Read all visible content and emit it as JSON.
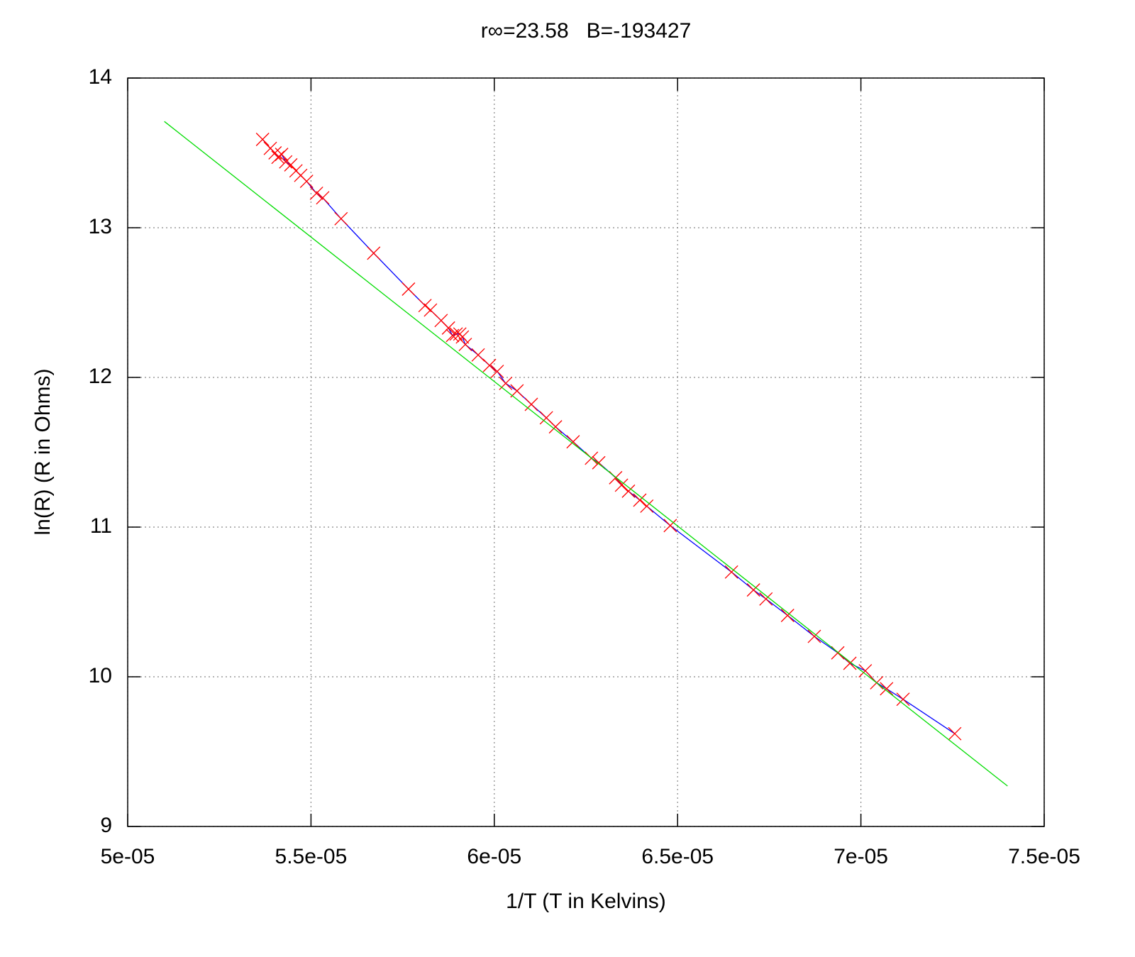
{
  "chart_data": {
    "type": "scatter-line",
    "title": "r∞=23.58   B=-193427",
    "xlabel": "1/T (T in Kelvins)",
    "ylabel": "ln(R) (R in Ohms)",
    "xlim": [
      5e-05,
      7.5e-05
    ],
    "ylim": [
      9,
      14
    ],
    "xticks": [
      {
        "value": 5e-05,
        "label": "5e-05"
      },
      {
        "value": 5.5e-05,
        "label": "5.5e-05"
      },
      {
        "value": 6e-05,
        "label": "6e-05"
      },
      {
        "value": 6.5e-05,
        "label": "6.5e-05"
      },
      {
        "value": 7e-05,
        "label": "7e-05"
      },
      {
        "value": 7.5e-05,
        "label": "7.5e-05"
      }
    ],
    "yticks": [
      9,
      10,
      11,
      12,
      13,
      14
    ],
    "grid": true,
    "series": [
      {
        "color": "#ff0000",
        "line_color": "#0000ff",
        "marker": "x",
        "x": [
          5.368e-05,
          5.389e-05,
          5.402e-05,
          5.41e-05,
          5.42e-05,
          5.431e-05,
          5.445e-05,
          5.459e-05,
          5.472e-05,
          5.488e-05,
          5.515e-05,
          5.532e-05,
          5.582e-05,
          5.671e-05,
          5.766e-05,
          5.811e-05,
          5.826e-05,
          5.855e-05,
          5.875e-05,
          5.886e-05,
          5.896e-05,
          5.906e-05,
          5.913e-05,
          5.921e-05,
          5.956e-05,
          5.987e-05,
          6.008e-05,
          6.031e-05,
          6.062e-05,
          6.101e-05,
          6.142e-05,
          6.167e-05,
          6.215e-05,
          6.265e-05,
          6.285e-05,
          6.331e-05,
          6.347e-05,
          6.366e-05,
          6.397e-05,
          6.416e-05,
          6.48e-05,
          6.647e-05,
          6.707e-05,
          6.741e-05,
          6.8e-05,
          6.873e-05,
          6.937e-05,
          6.97e-05,
          7.012e-05,
          7.043e-05,
          7.07e-05,
          7.115e-05,
          7.256e-05
        ],
        "values": [
          13.59,
          13.53,
          13.5,
          13.47,
          13.49,
          13.44,
          13.42,
          13.38,
          13.35,
          13.31,
          13.23,
          13.2,
          13.06,
          12.83,
          12.59,
          12.48,
          12.45,
          12.38,
          12.33,
          12.28,
          12.29,
          12.29,
          12.27,
          12.22,
          12.15,
          12.08,
          12.04,
          11.96,
          11.91,
          11.82,
          11.73,
          11.67,
          11.57,
          11.46,
          11.43,
          11.33,
          11.28,
          11.24,
          11.18,
          11.14,
          11.01,
          10.7,
          10.58,
          10.52,
          10.41,
          10.27,
          10.16,
          10.09,
          10.04,
          9.96,
          9.92,
          9.85,
          9.62
        ]
      },
      {
        "color": "#00dd00",
        "marker": "none",
        "x": [
          5.1e-05,
          7.4e-05
        ],
        "values": [
          13.71,
          9.27
        ]
      }
    ]
  }
}
